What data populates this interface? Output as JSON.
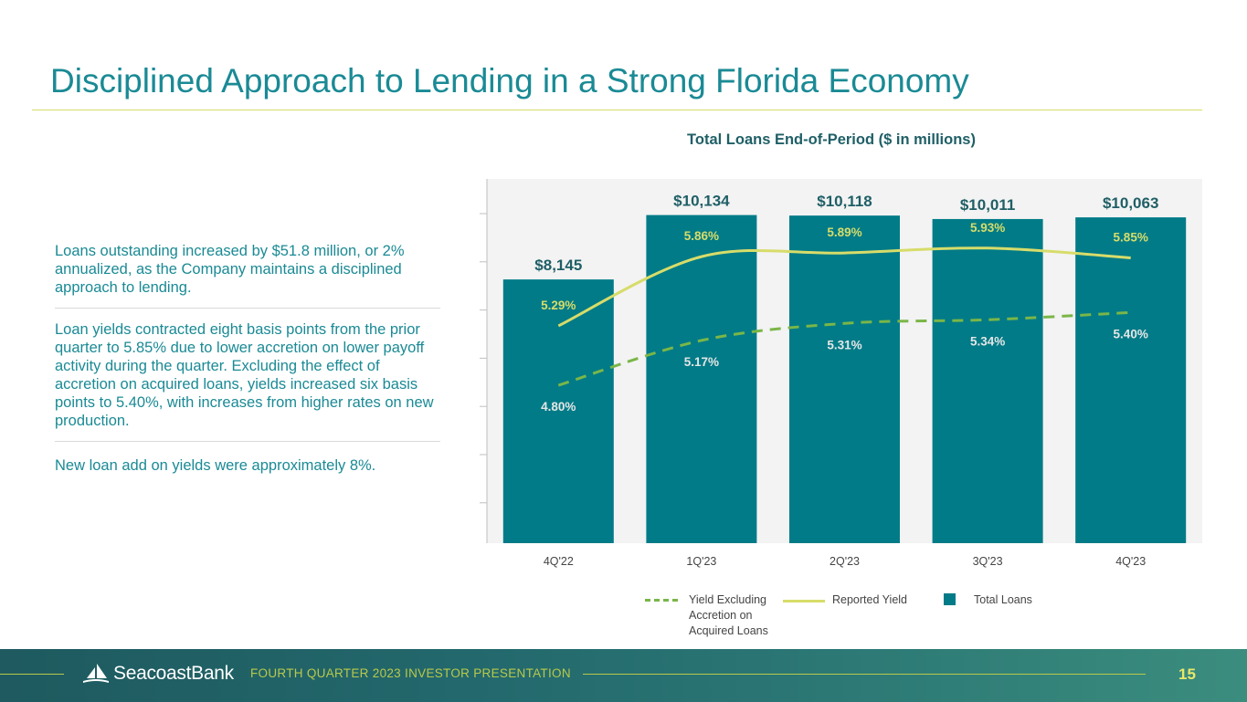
{
  "page": {
    "title": "Disciplined Approach to Lending in a Strong Florida Economy",
    "bullets": [
      "Loans outstanding increased by $51.8 million, or 2% annualized, as the Company maintains a disciplined approach to lending.",
      "Loan yields contracted eight basis points from the prior quarter to 5.85% due to lower accretion on lower payoff activity during the quarter. Excluding the effect of accretion on acquired loans, yields increased six basis points to 5.40%, with increases from higher rates on new production.",
      "New loan add on yields were approximately 8%."
    ]
  },
  "colors": {
    "title": "#1a8a95",
    "bar": "#007b87",
    "reported_yield": "#d7dc6a",
    "yield_ex_accretion": "#7ab648"
  },
  "chart_data": {
    "type": "bar",
    "title": "Total Loans End-of-Period ($ in millions)",
    "categories": [
      "4Q'22",
      "1Q'23",
      "2Q'23",
      "3Q'23",
      "4Q'23"
    ],
    "series": [
      {
        "name": "Total Loans",
        "type": "bar",
        "values": [
          8145,
          10134,
          10118,
          10011,
          10063
        ],
        "labels": [
          "$8,145",
          "$10,134",
          "$10,118",
          "$10,011",
          "$10,063"
        ]
      },
      {
        "name": "Reported Yield",
        "type": "line",
        "values": [
          5.29,
          5.86,
          5.89,
          5.93,
          5.85
        ],
        "labels": [
          "5.29%",
          "5.86%",
          "5.89%",
          "5.93%",
          "5.85%"
        ]
      },
      {
        "name": "Yield Excluding Accretion on Acquired Loans",
        "type": "line",
        "style": "dashed",
        "values": [
          4.8,
          5.17,
          5.31,
          5.34,
          5.4
        ],
        "labels": [
          "4.80%",
          "5.17%",
          "5.31%",
          "5.34%",
          "5.40%"
        ]
      }
    ],
    "ylim": [
      0,
      11250
    ],
    "yield_scale": [
      3.5,
      6.5
    ],
    "legend": [
      "Yield Excluding Accretion on Acquired Loans",
      "Reported Yield",
      "Total Loans"
    ],
    "legend_position": "bottom"
  },
  "legend": {
    "yield_ex_lines": [
      "Yield Excluding",
      "Accretion on",
      "Acquired Loans"
    ],
    "reported_yield": "Reported Yield",
    "total_loans": "Total Loans"
  },
  "footer": {
    "logo": "SeacoastBank",
    "label": "FOURTH QUARTER 2023 INVESTOR PRESENTATION",
    "page_number": "15"
  }
}
